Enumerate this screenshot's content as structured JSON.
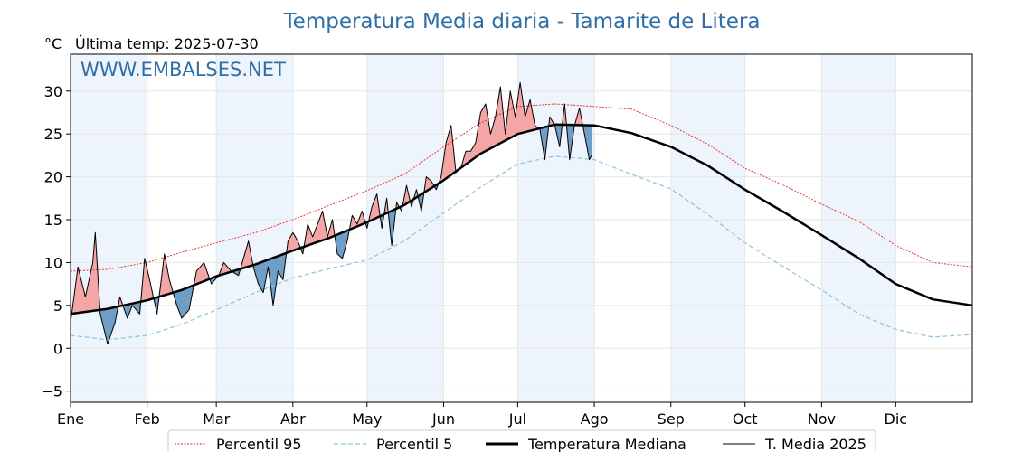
{
  "chart_data": {
    "type": "line",
    "title": "Temperatura Media diaria - Tamarite de Litera",
    "unit": "°C",
    "last_temp_label": "Última temp: 2025-07-30",
    "watermark": "WWW.EMBALSES.NET",
    "xlim": [
      0,
      365
    ],
    "ylim": [
      -6.3,
      34.3
    ],
    "y_ticks": [
      -5,
      0,
      5,
      10,
      15,
      20,
      25,
      30
    ],
    "month_labels": [
      "Ene",
      "Feb",
      "Mar",
      "Abr",
      "May",
      "Jun",
      "Jul",
      "Ago",
      "Sep",
      "Oct",
      "Nov",
      "Dic"
    ],
    "month_starts": [
      0,
      31,
      59,
      90,
      120,
      151,
      181,
      212,
      243,
      273,
      304,
      334
    ],
    "grid": true,
    "legend_position": "bottom",
    "colors": {
      "p95": "#e8251f",
      "p5": "#8fc3dd",
      "median": "#000000",
      "t2025": "#000000",
      "above_fill": "#f4a6a6",
      "below_fill": "#6f9ec6",
      "band": "#eef4fb",
      "title": "#2f6fa6"
    },
    "series": [
      {
        "name": "Percentil 95",
        "key": "p95",
        "x": [
          0,
          15,
          31,
          45,
          59,
          75,
          90,
          105,
          120,
          135,
          151,
          166,
          181,
          196,
          212,
          227,
          243,
          258,
          273,
          288,
          304,
          319,
          334,
          349,
          365
        ],
        "values": [
          9.0,
          9.2,
          10.0,
          11.2,
          12.3,
          13.5,
          15.0,
          16.7,
          18.4,
          20.3,
          23.5,
          26.3,
          28.2,
          28.5,
          28.2,
          27.9,
          26.0,
          23.8,
          21.0,
          19.1,
          16.8,
          14.8,
          12.0,
          10.0,
          9.5
        ]
      },
      {
        "name": "Percentil 5",
        "key": "p5",
        "x": [
          0,
          15,
          31,
          45,
          59,
          75,
          90,
          105,
          120,
          135,
          151,
          166,
          181,
          196,
          212,
          227,
          243,
          258,
          273,
          288,
          304,
          319,
          334,
          349,
          365
        ],
        "values": [
          1.5,
          1.0,
          1.5,
          2.8,
          4.5,
          6.5,
          8.2,
          9.3,
          10.3,
          12.5,
          15.8,
          18.8,
          21.5,
          22.4,
          22.0,
          20.3,
          18.6,
          15.6,
          12.3,
          9.6,
          6.8,
          4.0,
          2.2,
          1.3,
          1.6
        ]
      },
      {
        "name": "Temperatura Mediana",
        "key": "median",
        "x": [
          0,
          15,
          31,
          45,
          59,
          75,
          90,
          105,
          120,
          135,
          151,
          166,
          181,
          196,
          212,
          227,
          243,
          258,
          273,
          288,
          304,
          319,
          334,
          349,
          365
        ],
        "values": [
          4.0,
          4.6,
          5.6,
          6.8,
          8.4,
          9.8,
          11.4,
          12.9,
          14.7,
          16.7,
          19.6,
          22.7,
          25.0,
          26.1,
          26.0,
          25.1,
          23.5,
          21.3,
          18.5,
          16.0,
          13.2,
          10.5,
          7.5,
          5.7,
          5.0
        ]
      },
      {
        "name": "T. Media 2025",
        "key": "t2025",
        "x": [
          0,
          3,
          6,
          9,
          10,
          12,
          15,
          18,
          20,
          23,
          25,
          28,
          30,
          32,
          35,
          38,
          40,
          43,
          45,
          48,
          51,
          54,
          57,
          60,
          62,
          65,
          68,
          70,
          72,
          74,
          76,
          78,
          80,
          82,
          84,
          86,
          88,
          90,
          92,
          94,
          96,
          98,
          100,
          102,
          104,
          106,
          108,
          110,
          112,
          114,
          116,
          118,
          120,
          122,
          124,
          126,
          128,
          130,
          132,
          134,
          136,
          138,
          140,
          142,
          144,
          146,
          148,
          150,
          152,
          154,
          156,
          158,
          160,
          162,
          164,
          166,
          168,
          170,
          172,
          174,
          176,
          178,
          180,
          182,
          184,
          186,
          188,
          190,
          192,
          194,
          196,
          198,
          200,
          202,
          204,
          206,
          208,
          210,
          211
        ],
        "values": [
          3.0,
          9.5,
          6.0,
          10.0,
          13.5,
          4.0,
          0.5,
          3.0,
          6.0,
          3.5,
          5.0,
          4.0,
          10.5,
          8.0,
          4.0,
          11.0,
          8.0,
          5.0,
          3.5,
          4.5,
          9.0,
          10.0,
          7.5,
          8.5,
          10.0,
          9.0,
          8.5,
          10.5,
          12.5,
          9.5,
          7.5,
          6.5,
          9.5,
          5.0,
          9.0,
          8.0,
          12.5,
          13.5,
          12.5,
          11.0,
          14.5,
          13.0,
          14.5,
          16.0,
          13.0,
          15.0,
          11.0,
          10.5,
          12.5,
          15.5,
          14.5,
          16.0,
          14.0,
          16.5,
          18.0,
          14.0,
          17.5,
          12.0,
          17.0,
          16.0,
          19.0,
          16.5,
          18.5,
          16.0,
          20.0,
          19.5,
          18.5,
          20.0,
          24.0,
          26.0,
          20.5,
          21.0,
          23.0,
          23.0,
          24.0,
          27.5,
          28.5,
          25.0,
          27.0,
          30.5,
          25.0,
          30.0,
          27.0,
          31.0,
          27.0,
          29.0,
          26.0,
          25.5,
          22.0,
          27.0,
          26.0,
          23.5,
          28.5,
          22.0,
          26.0,
          28.0,
          25.0,
          22.0,
          22.5
        ]
      }
    ]
  }
}
